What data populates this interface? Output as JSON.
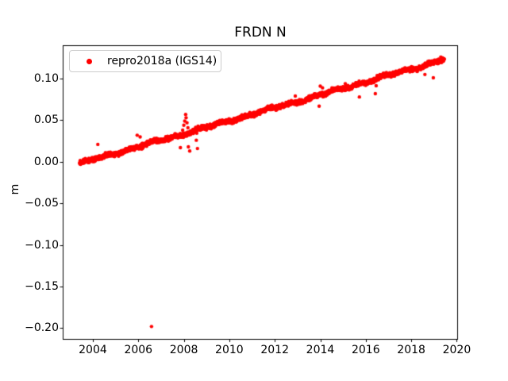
{
  "chart_data": {
    "type": "scatter",
    "title": "FRDN N",
    "xlabel": "",
    "ylabel": "m",
    "xlim": [
      2002.71,
      2020.02
    ],
    "ylim": [
      -0.2134,
      0.1397
    ],
    "grid": false,
    "xticks": [
      2004,
      2006,
      2008,
      2010,
      2012,
      2014,
      2016,
      2018,
      2020
    ],
    "xtick_labels": [
      "2004",
      "2006",
      "2008",
      "2010",
      "2012",
      "2014",
      "2016",
      "2018",
      "2020"
    ],
    "yticks": [
      0.1,
      0.05,
      0.0,
      -0.05,
      -0.1,
      -0.15,
      -0.2
    ],
    "ytick_labels": [
      "0.10",
      "0.05",
      "0.00",
      "−0.05",
      "−0.10",
      "−0.15",
      "−0.20"
    ],
    "axis_color": "#000000",
    "legend": {
      "position": "upper left",
      "entries": [
        {
          "label": "repro2018a (IGS14)",
          "marker": "dot",
          "color": "#ff0000"
        }
      ]
    },
    "series": [
      {
        "name": "repro2018a (IGS14)",
        "color": "#ff0000",
        "marker": "dot",
        "marker_radius_px": 2.2,
        "band": {
          "t_start": 2003.42,
          "v_start": -0.002,
          "t_end": 2019.45,
          "v_end": 0.123,
          "points_per_year": 160,
          "noise_amp": 0.0038,
          "meander_amp": 0.0018,
          "stray_prob": 0.012
        },
        "notable_points": [
          [
            2006.58,
            -0.198
          ],
          [
            2004.22,
            0.021
          ],
          [
            2005.95,
            0.032
          ],
          [
            2006.08,
            0.03
          ],
          [
            2007.85,
            0.017
          ],
          [
            2007.95,
            0.038
          ],
          [
            2008.0,
            0.044
          ],
          [
            2008.04,
            0.049
          ],
          [
            2008.08,
            0.057
          ],
          [
            2008.1,
            0.053
          ],
          [
            2008.14,
            0.047
          ],
          [
            2008.18,
            0.041
          ],
          [
            2008.2,
            0.018
          ],
          [
            2008.26,
            0.013
          ],
          [
            2008.55,
            0.026
          ],
          [
            2008.6,
            0.016
          ],
          [
            2013.95,
            0.067
          ],
          [
            2014.0,
            0.091
          ],
          [
            2014.1,
            0.089
          ],
          [
            2015.1,
            0.094
          ],
          [
            2015.72,
            0.078
          ],
          [
            2016.42,
            0.082
          ],
          [
            2018.6,
            0.105
          ],
          [
            2018.97,
            0.101
          ],
          [
            2019.3,
            0.126
          ],
          [
            2019.38,
            0.125
          ],
          [
            2019.42,
            0.122
          ]
        ]
      }
    ]
  }
}
